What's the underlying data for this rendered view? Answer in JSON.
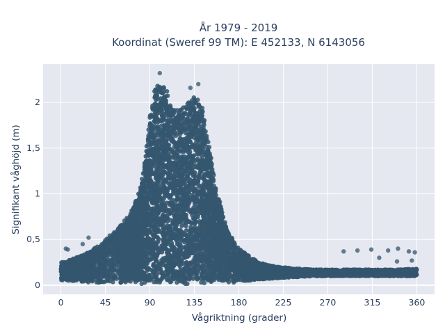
{
  "chart_data": {
    "type": "scatter",
    "title_line1": "År 1979 - 2019",
    "title_line2": "Koordinat (Sweref 99 TM): E 452133, N 6143056",
    "xlabel": "Vågriktning (grader)",
    "ylabel": "Signifikant våghöjd (m)",
    "xlim": [
      -18,
      378
    ],
    "ylim": [
      -0.1,
      2.42
    ],
    "xticks": [
      0,
      45,
      90,
      135,
      180,
      225,
      270,
      315,
      360
    ],
    "xtick_labels": [
      "0",
      "45",
      "90",
      "135",
      "180",
      "225",
      "270",
      "315",
      "360"
    ],
    "yticks": [
      0,
      0.5,
      1,
      1.5,
      2
    ],
    "ytick_labels": [
      "0",
      "0,5",
      "1",
      "1,5",
      "2"
    ],
    "grid": true,
    "marker_color": "#34566e",
    "plot_bg": "#e5e8f0",
    "envelope": {
      "x": [
        0,
        10,
        20,
        30,
        40,
        50,
        60,
        70,
        80,
        85,
        90,
        95,
        100,
        105,
        110,
        115,
        120,
        125,
        130,
        135,
        140,
        145,
        150,
        155,
        160,
        165,
        170,
        175,
        180,
        190,
        200,
        210,
        220,
        240,
        260,
        280,
        300,
        320,
        340,
        360
      ],
      "y_max": [
        0.25,
        0.28,
        0.32,
        0.38,
        0.45,
        0.55,
        0.65,
        0.78,
        1.05,
        1.4,
        1.85,
        2.15,
        2.22,
        2.18,
        2.05,
        1.98,
        1.93,
        1.95,
        2.05,
        2.12,
        2.08,
        1.85,
        1.55,
        1.2,
        0.95,
        0.72,
        0.58,
        0.48,
        0.4,
        0.32,
        0.25,
        0.22,
        0.2,
        0.18,
        0.17,
        0.17,
        0.17,
        0.17,
        0.17,
        0.18
      ],
      "y_min": [
        0.05,
        0.05,
        0.04,
        0.03,
        0.03,
        0.02,
        0.02,
        0.02,
        0.01,
        0.01,
        0.01,
        0.01,
        0.01,
        0.01,
        0.01,
        0.01,
        0.01,
        0.01,
        0.01,
        0.01,
        0.01,
        0.01,
        0.01,
        0.01,
        0.01,
        0.01,
        0.02,
        0.03,
        0.04,
        0.05,
        0.06,
        0.07,
        0.08,
        0.09,
        0.1,
        0.1,
        0.1,
        0.1,
        0.1,
        0.1
      ]
    },
    "outliers": [
      {
        "x": 5,
        "y": 0.4
      },
      {
        "x": 7,
        "y": 0.39
      },
      {
        "x": 22,
        "y": 0.45
      },
      {
        "x": 28,
        "y": 0.52
      },
      {
        "x": 100,
        "y": 2.32
      },
      {
        "x": 131,
        "y": 2.16
      },
      {
        "x": 139,
        "y": 2.2
      },
      {
        "x": 286,
        "y": 0.37
      },
      {
        "x": 300,
        "y": 0.38
      },
      {
        "x": 314,
        "y": 0.39
      },
      {
        "x": 331,
        "y": 0.38
      },
      {
        "x": 341,
        "y": 0.4
      },
      {
        "x": 352,
        "y": 0.37
      },
      {
        "x": 358,
        "y": 0.36
      },
      {
        "x": 322,
        "y": 0.3
      },
      {
        "x": 340,
        "y": 0.26
      },
      {
        "x": 355,
        "y": 0.27
      }
    ]
  }
}
